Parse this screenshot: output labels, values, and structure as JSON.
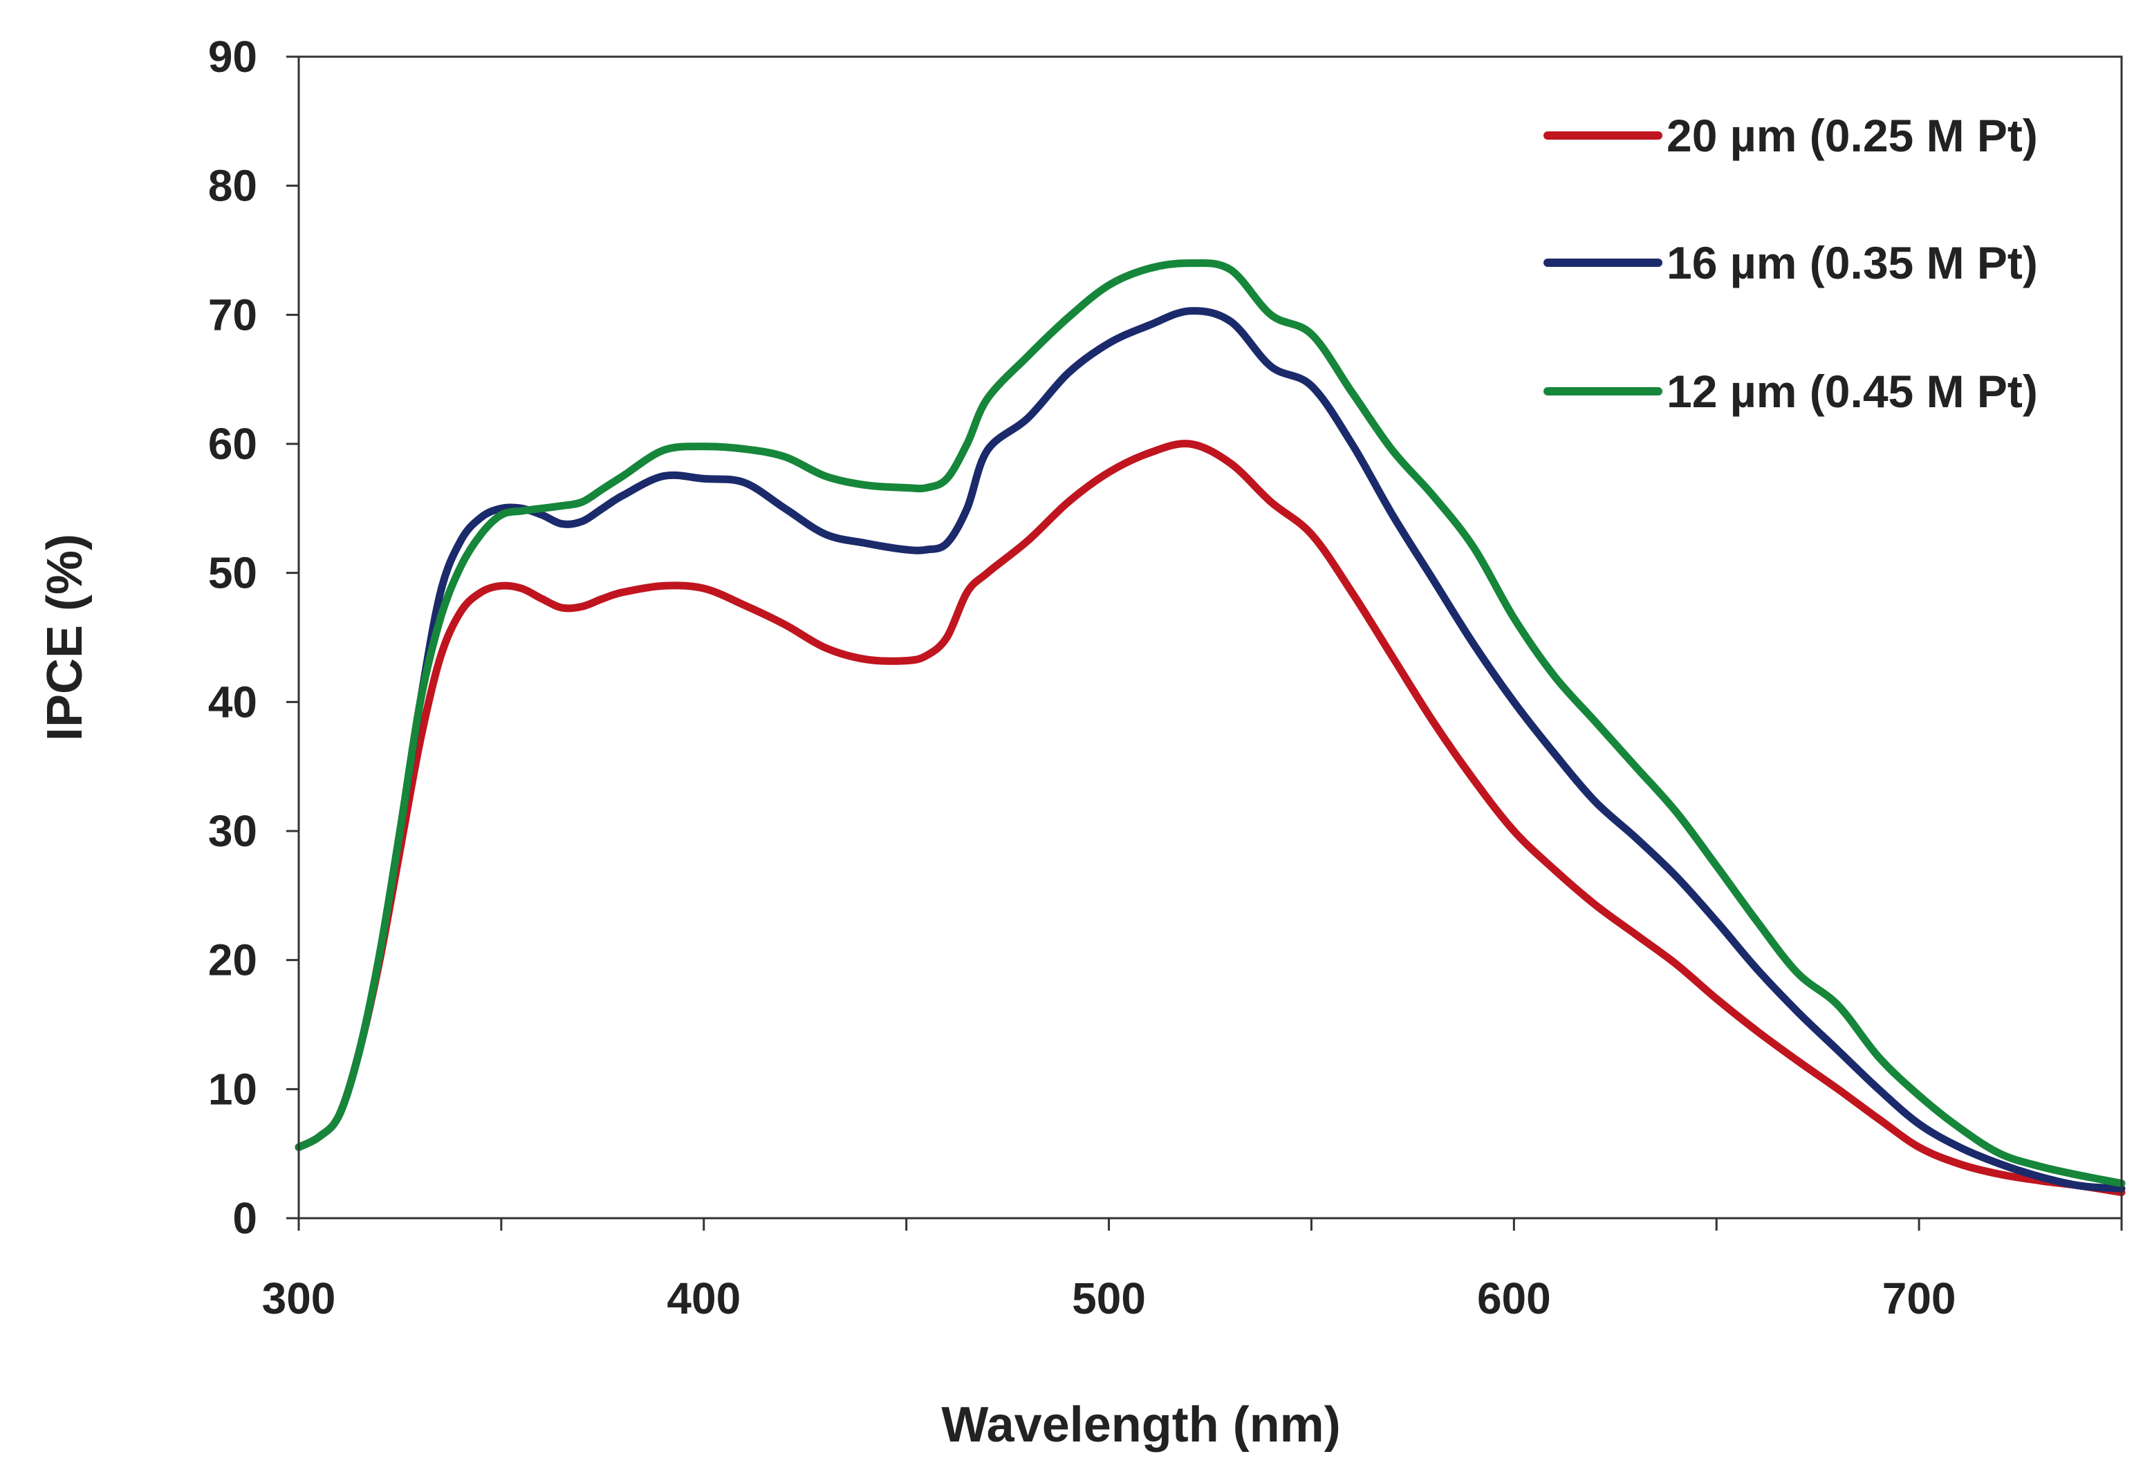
{
  "chart_data": {
    "type": "line",
    "title": "",
    "xlabel": "Wavelength (nm)",
    "ylabel": "IPCE (%)",
    "xlim": [
      300,
      750
    ],
    "ylim": [
      0,
      90
    ],
    "xticks": [
      300,
      400,
      500,
      600,
      700
    ],
    "yticks": [
      0,
      10,
      20,
      30,
      40,
      50,
      60,
      70,
      80,
      90
    ],
    "grid": false,
    "legend_position": "top-right",
    "series": [
      {
        "name": "20 µm (0.25 M Pt)",
        "color": "#c0151f",
        "x": [
          300,
          305,
          310,
          315,
          320,
          325,
          330,
          335,
          340,
          345,
          350,
          355,
          360,
          365,
          370,
          375,
          380,
          390,
          400,
          410,
          420,
          430,
          440,
          450,
          455,
          460,
          465,
          470,
          480,
          490,
          500,
          510,
          520,
          530,
          540,
          550,
          560,
          570,
          580,
          590,
          600,
          610,
          620,
          630,
          640,
          650,
          660,
          670,
          680,
          690,
          700,
          710,
          720,
          730,
          740,
          750
        ],
        "y": [
          5.5,
          6.3,
          8.0,
          13.0,
          20.0,
          28.5,
          37.0,
          43.5,
          47.0,
          48.5,
          49.0,
          48.8,
          48.0,
          47.3,
          47.4,
          48.0,
          48.5,
          49.0,
          48.8,
          47.5,
          46.0,
          44.2,
          43.3,
          43.2,
          43.6,
          45.0,
          48.5,
          50.0,
          52.5,
          55.5,
          57.8,
          59.3,
          60.0,
          58.5,
          55.5,
          53.0,
          48.5,
          43.5,
          38.5,
          34.0,
          30.0,
          27.0,
          24.3,
          22.0,
          19.7,
          17.0,
          14.5,
          12.2,
          10.0,
          7.7,
          5.5,
          4.2,
          3.4,
          2.9,
          2.5,
          2.0
        ]
      },
      {
        "name": "16 µm (0.35 M Pt)",
        "color": "#1b2a6b",
        "x": [
          300,
          305,
          310,
          315,
          320,
          325,
          330,
          335,
          340,
          345,
          350,
          355,
          360,
          365,
          370,
          375,
          380,
          390,
          400,
          410,
          420,
          430,
          440,
          450,
          455,
          460,
          465,
          470,
          480,
          490,
          500,
          510,
          520,
          530,
          540,
          550,
          560,
          570,
          580,
          590,
          600,
          610,
          620,
          630,
          640,
          650,
          660,
          670,
          680,
          690,
          700,
          710,
          720,
          730,
          740,
          750
        ],
        "y": [
          5.5,
          6.3,
          8.0,
          13.0,
          20.5,
          30.0,
          40.0,
          48.5,
          52.5,
          54.3,
          55.0,
          55.0,
          54.5,
          53.8,
          54.0,
          55.0,
          56.0,
          57.5,
          57.3,
          57.0,
          55.0,
          53.0,
          52.3,
          51.8,
          51.8,
          52.3,
          55.0,
          59.5,
          62.0,
          65.5,
          67.8,
          69.2,
          70.3,
          69.5,
          66.0,
          64.5,
          60.0,
          54.5,
          49.5,
          44.5,
          40.0,
          36.0,
          32.3,
          29.5,
          26.5,
          23.0,
          19.3,
          16.0,
          13.0,
          10.0,
          7.3,
          5.5,
          4.2,
          3.2,
          2.5,
          2.3
        ]
      },
      {
        "name": "12 µm (0.45 M Pt)",
        "color": "#16863a",
        "x": [
          300,
          305,
          310,
          315,
          320,
          325,
          330,
          335,
          340,
          345,
          350,
          355,
          360,
          365,
          370,
          375,
          380,
          390,
          400,
          410,
          420,
          430,
          440,
          450,
          455,
          460,
          465,
          470,
          480,
          490,
          500,
          510,
          520,
          530,
          540,
          550,
          560,
          570,
          580,
          590,
          600,
          610,
          620,
          630,
          640,
          650,
          660,
          670,
          680,
          690,
          700,
          710,
          720,
          730,
          740,
          750
        ],
        "y": [
          5.5,
          6.3,
          8.0,
          13.0,
          20.5,
          30.0,
          40.0,
          46.5,
          50.5,
          53.0,
          54.5,
          54.8,
          55.0,
          55.2,
          55.5,
          56.5,
          57.5,
          59.5,
          59.8,
          59.6,
          59.0,
          57.5,
          56.8,
          56.6,
          56.6,
          57.3,
          60.0,
          63.5,
          66.8,
          69.8,
          72.3,
          73.6,
          74.0,
          73.5,
          70.0,
          68.5,
          64.0,
          59.5,
          56.0,
          52.0,
          46.5,
          42.0,
          38.5,
          35.0,
          31.5,
          27.3,
          23.0,
          19.0,
          16.5,
          12.5,
          9.5,
          7.0,
          5.0,
          4.0,
          3.3,
          2.7
        ]
      }
    ]
  }
}
